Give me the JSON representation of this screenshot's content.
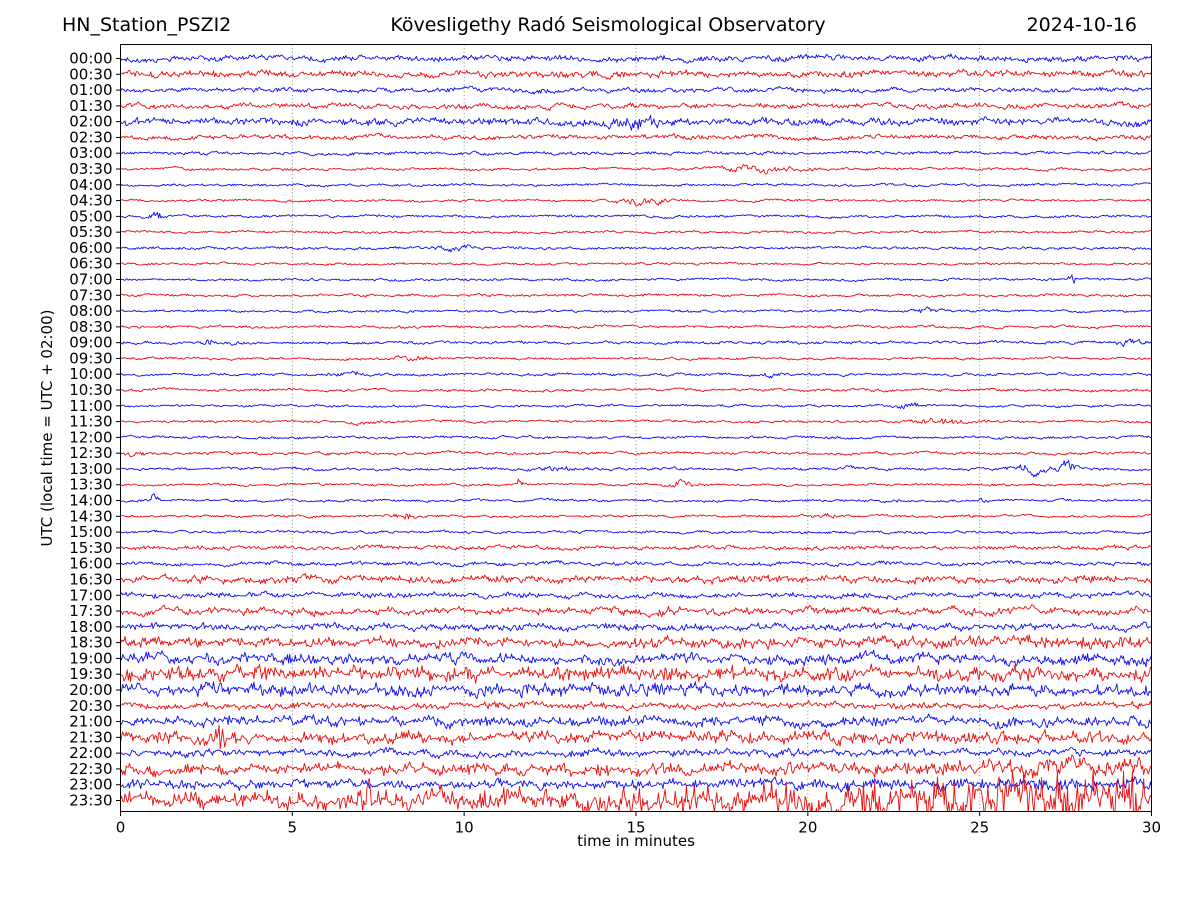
{
  "chart_data": {
    "type": "line",
    "subtype": "helicorder-seismogram",
    "station": "HN_Station_PSZI2",
    "observatory": "Kövesligethy Radó Seismological Observatory",
    "date": "2024-10-16",
    "xlabel": "time in minutes",
    "ylabel": "UTC (local time = UTC + 02:00)",
    "x_range": [
      0,
      30
    ],
    "x_ticks": [
      0,
      5,
      10,
      15,
      20,
      25,
      30
    ],
    "minutes_per_line": 30,
    "lines_count": 48,
    "grid": {
      "vertical_dotted_every_min": 5,
      "color": "#7a7a7a"
    },
    "colors": {
      "trace_blue": "#0000ee",
      "trace_red": "#e80000",
      "frame": "#000000",
      "text": "#000000"
    },
    "legend": "alternating half-hour traces: full hours blue, half hours red",
    "traces": [
      {
        "label": "00:00",
        "color": "blue",
        "amp": 1.6,
        "spiky": 0.25,
        "events": []
      },
      {
        "label": "00:30",
        "color": "red",
        "amp": 1.6,
        "spiky": 0.35,
        "events": []
      },
      {
        "label": "01:00",
        "color": "blue",
        "amp": 1.3,
        "spiky": 0.2,
        "events": []
      },
      {
        "label": "01:30",
        "color": "red",
        "amp": 1.45,
        "spiky": 0.2,
        "events": []
      },
      {
        "label": "02:00",
        "color": "blue",
        "amp": 1.45,
        "spiky": 0.2,
        "dense": true,
        "events": [
          {
            "kind": "burst",
            "t": 15.0,
            "dur": 1.3,
            "amp": 1.9
          }
        ]
      },
      {
        "label": "02:30",
        "color": "red",
        "amp": 1.35,
        "spiky": 0.15,
        "events": []
      },
      {
        "label": "03:00",
        "color": "blue",
        "amp": 1.0,
        "spiky": 0.1,
        "events": []
      },
      {
        "label": "03:30",
        "color": "red",
        "amp": 0.8,
        "spiky": 0.1,
        "events": [
          {
            "kind": "burst",
            "t": 18.7,
            "dur": 1.7,
            "amp": 3.4
          }
        ]
      },
      {
        "label": "04:00",
        "color": "blue",
        "amp": 0.8,
        "spiky": 0.1,
        "events": []
      },
      {
        "label": "04:30",
        "color": "red",
        "amp": 0.75,
        "spiky": 0.1,
        "events": [
          {
            "kind": "burst",
            "t": 15.2,
            "dur": 0.9,
            "amp": 4.2
          }
        ]
      },
      {
        "label": "05:00",
        "color": "blue",
        "amp": 0.8,
        "spiky": 0.1,
        "events": [
          {
            "kind": "spike",
            "t": 1.0,
            "dur": 0.4,
            "amp": 4.0
          }
        ]
      },
      {
        "label": "05:30",
        "color": "red",
        "amp": 0.75,
        "spiky": 0.1,
        "events": []
      },
      {
        "label": "06:00",
        "color": "blue",
        "amp": 0.85,
        "spiky": 0.1,
        "events": [
          {
            "kind": "burst",
            "t": 9.7,
            "dur": 1.0,
            "amp": 2.4
          }
        ]
      },
      {
        "label": "06:30",
        "color": "red",
        "amp": 0.75,
        "spiky": 0.1,
        "events": []
      },
      {
        "label": "07:00",
        "color": "blue",
        "amp": 0.75,
        "spiky": 0.1,
        "events": [
          {
            "kind": "spike",
            "t": 27.7,
            "dur": 0.16,
            "amp": 5.5
          }
        ]
      },
      {
        "label": "07:30",
        "color": "red",
        "amp": 0.8,
        "spiky": 0.1,
        "events": []
      },
      {
        "label": "08:00",
        "color": "blue",
        "amp": 0.75,
        "spiky": 0.1,
        "events": [
          {
            "kind": "burst",
            "t": 23.5,
            "dur": 0.8,
            "amp": 2.4
          }
        ]
      },
      {
        "label": "08:30",
        "color": "red",
        "amp": 0.85,
        "spiky": 0.1,
        "events": []
      },
      {
        "label": "09:00",
        "color": "blue",
        "amp": 0.85,
        "spiky": 0.15,
        "events": [
          {
            "kind": "spike",
            "t": 2.5,
            "dur": 0.28,
            "amp": 3.6
          },
          {
            "kind": "burst",
            "t": 3.4,
            "dur": 0.3,
            "amp": 2.2
          },
          {
            "kind": "burst",
            "t": 29.4,
            "dur": 0.9,
            "amp": 2.8
          }
        ]
      },
      {
        "label": "09:30",
        "color": "red",
        "amp": 0.75,
        "spiky": 0.1,
        "events": [
          {
            "kind": "burst",
            "t": 8.4,
            "dur": 0.8,
            "amp": 2.6
          }
        ]
      },
      {
        "label": "10:00",
        "color": "blue",
        "amp": 0.8,
        "spiky": 0.1,
        "events": [
          {
            "kind": "burst",
            "t": 6.7,
            "dur": 0.7,
            "amp": 2.1
          },
          {
            "kind": "burst",
            "t": 19.0,
            "dur": 0.6,
            "amp": 2.1
          }
        ]
      },
      {
        "label": "10:30",
        "color": "red",
        "amp": 0.85,
        "spiky": 0.1,
        "events": []
      },
      {
        "label": "11:00",
        "color": "blue",
        "amp": 0.75,
        "spiky": 0.1,
        "events": [
          {
            "kind": "burst",
            "t": 22.9,
            "dur": 0.7,
            "amp": 2.5
          }
        ]
      },
      {
        "label": "11:30",
        "color": "red",
        "amp": 0.75,
        "spiky": 0.1,
        "events": [
          {
            "kind": "burst",
            "t": 7.0,
            "dur": 0.6,
            "amp": 2.1
          },
          {
            "kind": "burst",
            "t": 23.9,
            "dur": 1.1,
            "amp": 3.0
          }
        ]
      },
      {
        "label": "12:00",
        "color": "blue",
        "amp": 0.8,
        "spiky": 0.1,
        "events": []
      },
      {
        "label": "12:30",
        "color": "red",
        "amp": 0.85,
        "spiky": 0.1,
        "events": [
          {
            "kind": "burst",
            "t": 0.4,
            "dur": 0.6,
            "amp": 2.3
          }
        ]
      },
      {
        "label": "13:00",
        "color": "blue",
        "amp": 0.8,
        "spiky": 0.15,
        "events": [
          {
            "kind": "burst",
            "t": 12.8,
            "dur": 0.9,
            "amp": 2.5
          },
          {
            "kind": "burst",
            "t": 21.3,
            "dur": 0.4,
            "amp": 2.1
          },
          {
            "kind": "burst",
            "t": 26.5,
            "dur": 0.7,
            "amp": 4.2
          },
          {
            "kind": "burst",
            "t": 27.5,
            "dur": 0.45,
            "amp": 4.2
          }
        ]
      },
      {
        "label": "13:30",
        "color": "red",
        "amp": 0.75,
        "spiky": 0.1,
        "events": [
          {
            "kind": "spike",
            "t": 11.6,
            "dur": 0.13,
            "amp": 5.0
          },
          {
            "kind": "burst",
            "t": 16.3,
            "dur": 0.6,
            "amp": 3.8
          }
        ]
      },
      {
        "label": "14:00",
        "color": "blue",
        "amp": 0.75,
        "spiky": 0.1,
        "events": [
          {
            "kind": "spike",
            "t": 0.95,
            "dur": 0.2,
            "amp": 5.5
          },
          {
            "kind": "burst",
            "t": 22.4,
            "dur": 0.35,
            "amp": 2.1
          },
          {
            "kind": "burst",
            "t": 25.1,
            "dur": 0.3,
            "amp": 1.9
          }
        ]
      },
      {
        "label": "14:30",
        "color": "red",
        "amp": 0.75,
        "spiky": 0.1,
        "events": [
          {
            "kind": "burst",
            "t": 8.2,
            "dur": 0.55,
            "amp": 4.0
          },
          {
            "kind": "burst",
            "t": 20.4,
            "dur": 0.7,
            "amp": 2.3
          }
        ]
      },
      {
        "label": "15:00",
        "color": "blue",
        "amp": 0.85,
        "spiky": 0.1,
        "events": []
      },
      {
        "label": "15:30",
        "color": "red",
        "amp": 1.15,
        "spiky": 0.2,
        "events": []
      },
      {
        "label": "16:00",
        "color": "blue",
        "amp": 1.05,
        "spiky": 0.2,
        "events": []
      },
      {
        "label": "16:30",
        "color": "red",
        "amp": 1.55,
        "spiky": 0.5,
        "events": []
      },
      {
        "label": "17:00",
        "color": "blue",
        "amp": 1.35,
        "spiky": 0.3,
        "events": []
      },
      {
        "label": "17:30",
        "color": "red",
        "amp": 1.5,
        "spiky": 0.5,
        "events": [
          {
            "kind": "burst",
            "t": 15.5,
            "dur": 1.5,
            "amp": 1.6
          }
        ]
      },
      {
        "label": "18:00",
        "color": "blue",
        "amp": 1.55,
        "spiky": 0.4,
        "events": []
      },
      {
        "label": "18:30",
        "color": "red",
        "amp": 1.85,
        "spiky": 0.6,
        "ramp": {
          "from": 15,
          "gain": 0.35
        },
        "events": []
      },
      {
        "label": "19:00",
        "color": "blue",
        "amp": 2.15,
        "spiky": 0.5,
        "events": []
      },
      {
        "label": "19:30",
        "color": "red",
        "amp": 2.55,
        "spiky": 0.7,
        "events": []
      },
      {
        "label": "20:00",
        "color": "blue",
        "amp": 2.35,
        "spiky": 0.6,
        "events": []
      },
      {
        "label": "20:30",
        "color": "red",
        "amp": 1.5,
        "spiky": 0.4,
        "events": []
      },
      {
        "label": "21:00",
        "color": "blue",
        "amp": 2.15,
        "spiky": 0.5,
        "events": []
      },
      {
        "label": "21:30",
        "color": "red",
        "amp": 2.3,
        "spiky": 0.6,
        "events": [
          {
            "kind": "spike",
            "t": 2.9,
            "dur": 0.25,
            "amp": 2.4
          }
        ]
      },
      {
        "label": "22:00",
        "color": "blue",
        "amp": 1.7,
        "spiky": 0.4,
        "events": []
      },
      {
        "label": "22:30",
        "color": "red",
        "amp": 2.3,
        "spiky": 0.6,
        "ramp": {
          "from": 20,
          "gain": 0.5
        },
        "events": []
      },
      {
        "label": "23:00",
        "color": "blue",
        "amp": 1.95,
        "spiky": 0.5,
        "ramp": {
          "from": 18,
          "gain": 0.5
        },
        "events": []
      },
      {
        "label": "23:30",
        "color": "red",
        "amp": 2.7,
        "spiky": 0.9,
        "ramp": {
          "from": 8,
          "gain": 1.8
        },
        "events": [
          {
            "kind": "spike",
            "t": 7.2,
            "dur": 0.3,
            "amp": 3.6
          }
        ]
      }
    ]
  }
}
